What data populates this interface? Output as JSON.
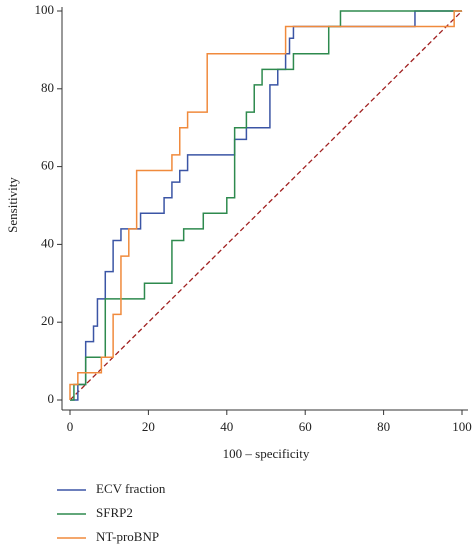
{
  "chart_data": {
    "type": "line",
    "xlabel": "100 – specificity",
    "ylabel": "Sensitivity",
    "xlim": [
      0,
      100
    ],
    "ylim": [
      0,
      100
    ],
    "xticks": [
      0,
      20,
      40,
      60,
      80,
      100
    ],
    "yticks": [
      0,
      20,
      40,
      60,
      80,
      100
    ],
    "series": [
      {
        "name": "ECV fraction",
        "color": "#3b55a5",
        "x": [
          0,
          2,
          2,
          4,
          4,
          6,
          6,
          7,
          7,
          9,
          9,
          11,
          11,
          13,
          13,
          18,
          18,
          24,
          24,
          26,
          26,
          28,
          28,
          30,
          30,
          42,
          42,
          45,
          45,
          51,
          51,
          53,
          53,
          55,
          55,
          56,
          56,
          57,
          57,
          88,
          88,
          100
        ],
        "values": [
          0,
          0,
          4,
          4,
          15,
          15,
          19,
          19,
          26,
          26,
          33,
          33,
          41,
          41,
          44,
          44,
          48,
          48,
          52,
          52,
          56,
          56,
          59,
          59,
          63,
          63,
          67,
          67,
          70,
          70,
          81,
          81,
          85,
          85,
          89,
          89,
          93,
          93,
          96,
          96,
          100,
          100
        ]
      },
      {
        "name": "SFRP2",
        "color": "#2e8a4e",
        "x": [
          0,
          1,
          1,
          4,
          4,
          9,
          9,
          19,
          19,
          26,
          26,
          29,
          29,
          34,
          34,
          40,
          40,
          42,
          42,
          45,
          45,
          47,
          47,
          49,
          49,
          57,
          57,
          66,
          66,
          69,
          69,
          100
        ],
        "values": [
          0,
          0,
          4,
          4,
          11,
          11,
          26,
          26,
          30,
          30,
          41,
          41,
          44,
          44,
          48,
          48,
          52,
          52,
          70,
          70,
          74,
          74,
          81,
          81,
          85,
          85,
          89,
          89,
          96,
          96,
          100,
          100
        ]
      },
      {
        "name": "NT-proBNP",
        "color": "#f08a3c",
        "x": [
          0,
          0,
          2,
          2,
          8,
          8,
          11,
          11,
          13,
          13,
          15,
          15,
          17,
          17,
          26,
          26,
          28,
          28,
          30,
          30,
          35,
          35,
          55,
          55,
          98,
          98,
          100
        ],
        "values": [
          0,
          4,
          4,
          7,
          7,
          11,
          11,
          22,
          22,
          37,
          37,
          44,
          44,
          59,
          59,
          63,
          63,
          70,
          70,
          74,
          74,
          89,
          89,
          96,
          96,
          100,
          100
        ]
      }
    ]
  }
}
